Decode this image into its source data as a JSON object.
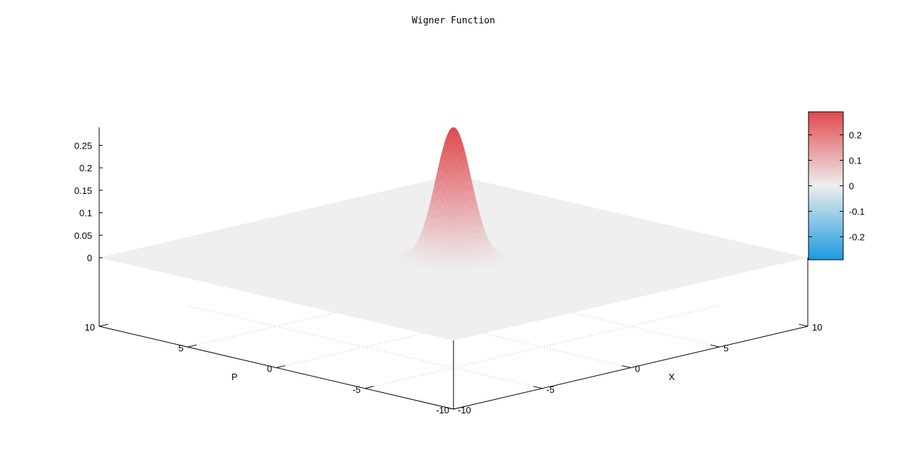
{
  "chart_data": {
    "type": "surface",
    "title": "Wigner Function",
    "xlabel": "X",
    "ylabel": "P",
    "xlim": [
      -10,
      10
    ],
    "ylim": [
      -10,
      10
    ],
    "zlim": [
      0,
      0.29
    ],
    "x_ticks": [
      "-10",
      "-5",
      "0",
      "5",
      "10"
    ],
    "y_ticks": [
      "-10",
      "-5",
      "0",
      "5",
      "10"
    ],
    "z_ticks": [
      "0",
      "0.05",
      "0.1",
      "0.15",
      "0.2",
      "0.25"
    ],
    "grid": true,
    "surface": {
      "function": "gaussian",
      "peak": 0.29,
      "center": [
        0,
        0
      ],
      "sigma": 0.7
    },
    "colorbar": {
      "range": [
        -0.29,
        0.29
      ],
      "ticks": [
        "0.2",
        "0.1",
        "0",
        "-0.1",
        "-0.2"
      ],
      "colors": {
        "positive": "#e04a4f",
        "zero": "#eeeeee",
        "negative": "#1a9bdd"
      }
    }
  }
}
